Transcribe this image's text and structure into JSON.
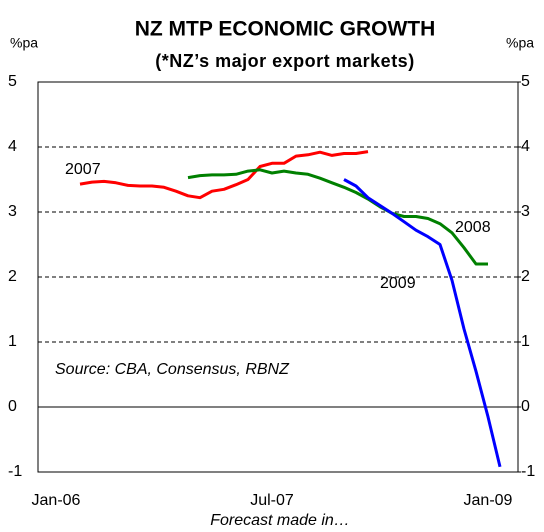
{
  "chart_data": {
    "type": "line",
    "title": "NZ MTP ECONOMIC GROWTH",
    "subtitle": "(*NZ’s major export markets)",
    "y_unit_left": "%pa",
    "y_unit_right": "%pa",
    "x_label": "Forecast made in…",
    "annotation": "Source: CBA, Consensus, RBNZ",
    "categories": [
      null,
      "Jan-06",
      null,
      null,
      null,
      null,
      null,
      null,
      null,
      null,
      null,
      null,
      null,
      null,
      null,
      null,
      null,
      null,
      null,
      "Jul-07",
      null,
      null,
      null,
      null,
      null,
      null,
      null,
      null,
      null,
      null,
      null,
      null,
      null,
      null,
      null,
      null,
      null,
      "Jan-09",
      null,
      null
    ],
    "series": [
      {
        "name": "2007",
        "color": "#ff0000",
        "values": [
          null,
          null,
          null,
          3.43,
          3.46,
          3.47,
          3.45,
          3.41,
          3.4,
          3.4,
          3.38,
          3.32,
          3.25,
          3.22,
          3.32,
          3.35,
          3.42,
          3.5,
          3.7,
          3.75,
          3.75,
          3.86,
          3.88,
          3.92,
          3.87,
          3.9,
          3.9,
          3.93,
          null,
          null,
          null,
          null,
          null,
          null,
          null,
          null,
          null,
          null,
          null,
          null
        ]
      },
      {
        "name": "2008",
        "color": "#008000",
        "values": [
          null,
          null,
          null,
          null,
          null,
          null,
          null,
          null,
          null,
          null,
          null,
          null,
          3.53,
          3.56,
          3.57,
          3.57,
          3.58,
          3.63,
          3.65,
          3.6,
          3.63,
          3.6,
          3.58,
          3.52,
          3.45,
          3.38,
          3.3,
          3.2,
          3.08,
          2.98,
          2.93,
          2.93,
          2.9,
          2.82,
          2.68,
          2.45,
          2.2,
          2.2,
          null,
          null
        ]
      },
      {
        "name": "2009",
        "color": "#0000ff",
        "values": [
          null,
          null,
          null,
          null,
          null,
          null,
          null,
          null,
          null,
          null,
          null,
          null,
          null,
          null,
          null,
          null,
          null,
          null,
          null,
          null,
          null,
          null,
          null,
          null,
          null,
          3.5,
          3.4,
          3.22,
          3.1,
          2.98,
          2.85,
          2.72,
          2.62,
          2.5,
          1.95,
          1.2,
          0.55,
          -0.15,
          -0.92,
          null
        ]
      }
    ],
    "ylim": [
      -1,
      5
    ],
    "yticks": [
      -1,
      0,
      1,
      2,
      3,
      4,
      5
    ],
    "y2lim": [
      -1,
      5
    ],
    "y2ticks": [
      -1,
      0,
      1,
      2,
      3,
      4,
      5
    ],
    "grid": true
  }
}
